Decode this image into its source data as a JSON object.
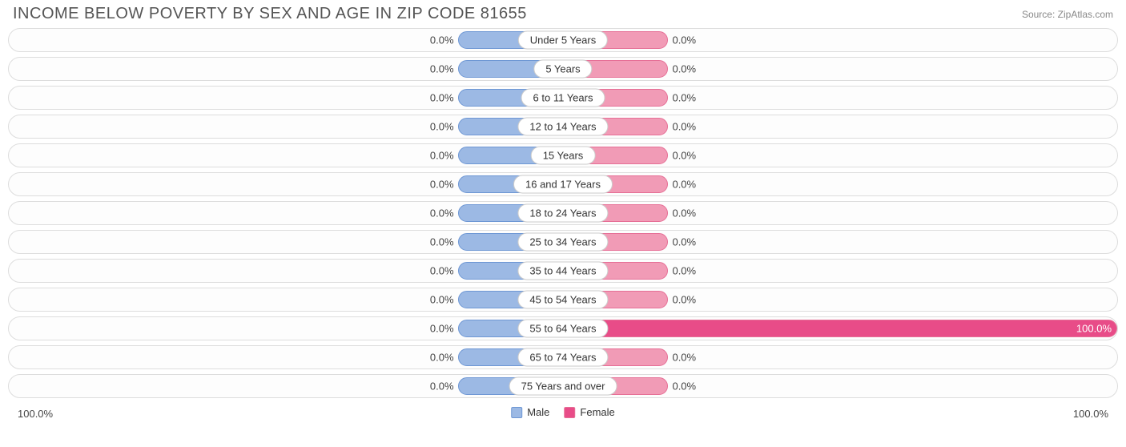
{
  "title": "INCOME BELOW POVERTY BY SEX AND AGE IN ZIP CODE 81655",
  "source": "Source: ZipAtlas.com",
  "colors": {
    "male_fill": "#9cb9e4",
    "male_border": "#6e97d4",
    "female_fill": "#f19bb6",
    "female_border": "#e66f96",
    "female_highlight": "#e84c88",
    "row_border": "#dddddd",
    "text": "#444444"
  },
  "base_bar_pct": 19,
  "axis": {
    "left": "100.0%",
    "right": "100.0%"
  },
  "legend": {
    "male": "Male",
    "female": "Female"
  },
  "rows": [
    {
      "category": "Under 5 Years",
      "male_val": 0.0,
      "male_label": "0.0%",
      "female_val": 0.0,
      "female_label": "0.0%"
    },
    {
      "category": "5 Years",
      "male_val": 0.0,
      "male_label": "0.0%",
      "female_val": 0.0,
      "female_label": "0.0%"
    },
    {
      "category": "6 to 11 Years",
      "male_val": 0.0,
      "male_label": "0.0%",
      "female_val": 0.0,
      "female_label": "0.0%"
    },
    {
      "category": "12 to 14 Years",
      "male_val": 0.0,
      "male_label": "0.0%",
      "female_val": 0.0,
      "female_label": "0.0%"
    },
    {
      "category": "15 Years",
      "male_val": 0.0,
      "male_label": "0.0%",
      "female_val": 0.0,
      "female_label": "0.0%"
    },
    {
      "category": "16 and 17 Years",
      "male_val": 0.0,
      "male_label": "0.0%",
      "female_val": 0.0,
      "female_label": "0.0%"
    },
    {
      "category": "18 to 24 Years",
      "male_val": 0.0,
      "male_label": "0.0%",
      "female_val": 0.0,
      "female_label": "0.0%"
    },
    {
      "category": "25 to 34 Years",
      "male_val": 0.0,
      "male_label": "0.0%",
      "female_val": 0.0,
      "female_label": "0.0%"
    },
    {
      "category": "35 to 44 Years",
      "male_val": 0.0,
      "male_label": "0.0%",
      "female_val": 0.0,
      "female_label": "0.0%"
    },
    {
      "category": "45 to 54 Years",
      "male_val": 0.0,
      "male_label": "0.0%",
      "female_val": 0.0,
      "female_label": "0.0%"
    },
    {
      "category": "55 to 64 Years",
      "male_val": 0.0,
      "male_label": "0.0%",
      "female_val": 100.0,
      "female_label": "100.0%"
    },
    {
      "category": "65 to 74 Years",
      "male_val": 0.0,
      "male_label": "0.0%",
      "female_val": 0.0,
      "female_label": "0.0%"
    },
    {
      "category": "75 Years and over",
      "male_val": 0.0,
      "male_label": "0.0%",
      "female_val": 0.0,
      "female_label": "0.0%"
    }
  ]
}
